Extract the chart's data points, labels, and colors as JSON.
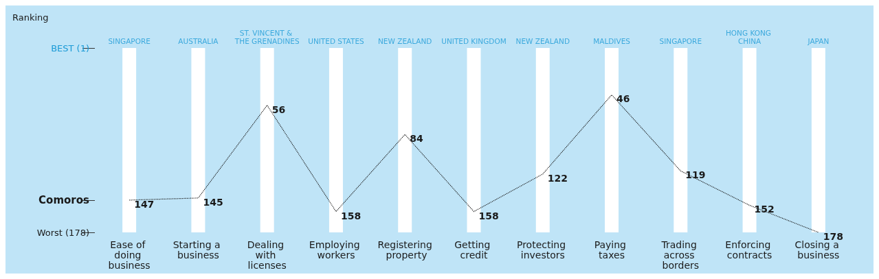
{
  "chart_data": {
    "type": "line",
    "ylabel": "Ranking",
    "categories": [
      "Ease of doing business",
      "Starting a business",
      "Dealing with licenses",
      "Employing workers",
      "Registering property",
      "Getting credit",
      "Protecting investors",
      "Paying taxes",
      "Trading across borders",
      "Enforcing contracts",
      "Closing a business"
    ],
    "series": [
      {
        "type": "bar",
        "color": "#ffffff",
        "base": [
          1,
          1,
          1,
          1,
          1,
          1,
          1,
          1,
          1,
          1,
          1
        ],
        "values": [
          177,
          177,
          177,
          177,
          177,
          177,
          177,
          177,
          177,
          177,
          177
        ]
      },
      {
        "color": "#1a1a1a",
        "values": [
          147,
          145,
          56,
          158,
          84,
          158,
          122,
          46,
          119,
          152,
          178
        ],
        "value_labels": [
          "147",
          "145",
          "56",
          "158",
          "84",
          "158",
          "122",
          "46",
          "119",
          "152",
          "178"
        ]
      }
    ],
    "line_style": "dotted",
    "marker": "none",
    "ylim": [
      178,
      1
    ],
    "yticks": [
      {
        "value": 1,
        "label": "BEST (1)"
      },
      {
        "value": 147,
        "label": "Comoros"
      },
      {
        "value": 178,
        "label": "Worst (178)"
      }
    ],
    "grid": false,
    "annotations": [
      "SINGAPORE",
      "AUSTRALIA",
      "ST. VINCENT & THE GRENADINES",
      "UNITED STATES",
      "NEW ZEALAND",
      "UNITED KINGDOM",
      "NEW ZEALAND",
      "MALDIVES",
      "SINGAPORE",
      "HONG KONG CHINA",
      "JAPAN"
    ]
  }
}
